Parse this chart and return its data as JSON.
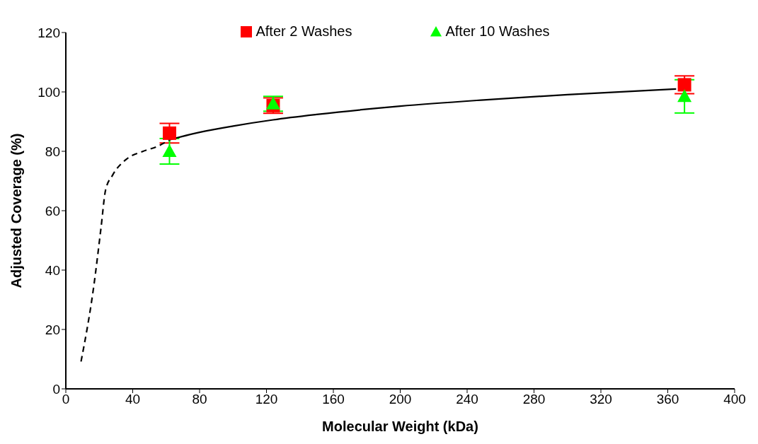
{
  "chart_data": {
    "type": "scatter",
    "xlabel": "Molecular Weight (kDa)",
    "ylabel": "Adjusted Coverage (%)",
    "xlim": [
      0,
      400
    ],
    "xticks": [
      0,
      40,
      80,
      120,
      160,
      200,
      240,
      280,
      320,
      360,
      400
    ],
    "ylim": [
      0,
      120
    ],
    "yticks": [
      0,
      20,
      40,
      60,
      80,
      100,
      120
    ],
    "grid": false,
    "legend": "top",
    "series": [
      {
        "type": "line",
        "line_style": "dashed",
        "marker": "none",
        "color": "#000000",
        "x": [
          9.1,
          16.8,
          21,
          23.8,
          28,
          36.4,
          46.2,
          54.6,
          62
        ],
        "values": [
          9.2,
          34.9,
          54,
          67,
          72,
          77.4,
          80,
          81.6,
          83.9
        ]
      },
      {
        "type": "line",
        "line_style": "solid",
        "marker": "none",
        "color": "#000000",
        "x": [
          62,
          80,
          100,
          124,
          150,
          200,
          250,
          300,
          365
        ],
        "values": [
          83.9,
          86.4,
          88.5,
          90.6,
          92.4,
          95.2,
          97.3,
          99.1,
          101
        ]
      },
      {
        "name": "After 2 Washes",
        "type": "scatter",
        "marker": "square",
        "color": "#ff0000",
        "x": [
          62,
          124,
          370
        ],
        "values": [
          86.1,
          95.4,
          102.4
        ],
        "errors": [
          3.3,
          2.6,
          3
        ]
      },
      {
        "name": "After 10 Washes",
        "type": "scatter",
        "marker": "triangle",
        "color": "#00ff00",
        "x": [
          62,
          124,
          370
        ],
        "values": [
          80,
          96,
          98.5
        ],
        "errors": [
          4.3,
          2.5,
          5.6
        ]
      }
    ]
  }
}
